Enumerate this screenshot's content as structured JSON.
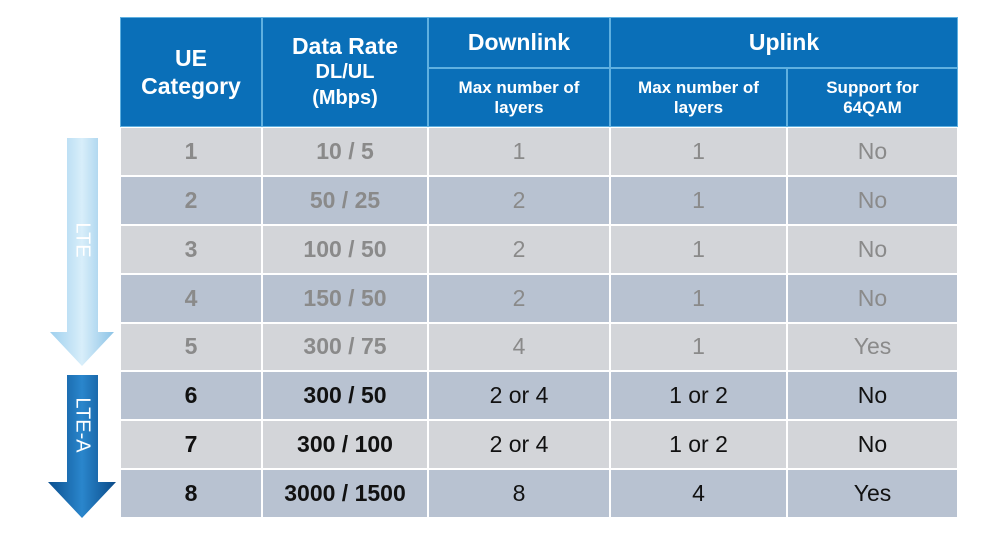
{
  "header": {
    "ue_category": "UE Category",
    "data_rate": "Data Rate",
    "data_rate_unit": "DL/UL (Mbps)",
    "downlink": "Downlink",
    "uplink": "Uplink",
    "dl_layers": "Max  number of layers",
    "ul_layers": "Max  number of layers",
    "qam": "Support for 64QAM"
  },
  "table": {
    "rows": [
      [
        "1",
        "10 / 5",
        "1",
        "1",
        "No"
      ],
      [
        "2",
        "50 / 25",
        "2",
        "1",
        "No"
      ],
      [
        "3",
        "100 / 50",
        "2",
        "1",
        "No"
      ],
      [
        "4",
        "150 / 50",
        "2",
        "1",
        "No"
      ],
      [
        "5",
        "300 / 75",
        "4",
        "1",
        "Yes"
      ],
      [
        "6",
        "300 / 50",
        "2 or 4",
        "1 or 2",
        "No"
      ],
      [
        "7",
        "300 / 100",
        "2 or 4",
        "1 or 2",
        "No"
      ],
      [
        "8",
        "3000 / 1500",
        "8",
        "4",
        "Yes"
      ]
    ]
  },
  "arrows": [
    {
      "label": "LTE"
    },
    {
      "label": "LTE-A"
    }
  ]
}
